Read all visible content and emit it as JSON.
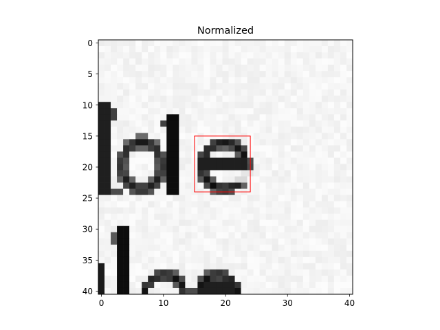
{
  "chart_data": {
    "type": "heatmap",
    "title": "Normalized",
    "xlabel": "",
    "ylabel": "",
    "xlim": [
      -0.5,
      40.5
    ],
    "ylim": [
      40.5,
      -0.5
    ],
    "x_ticks": [
      0,
      10,
      20,
      30,
      40
    ],
    "y_ticks": [
      0,
      5,
      10,
      15,
      20,
      25,
      30,
      35,
      40
    ],
    "x_tick_labels": [
      "0",
      "10",
      "20",
      "30",
      "40"
    ],
    "y_tick_labels": [
      "0",
      "5",
      "10",
      "15",
      "20",
      "25",
      "30",
      "35",
      "40"
    ],
    "colormap": "gray",
    "grid": false,
    "grid_size": [
      41,
      41
    ],
    "content_description": "Grayscale crop of printed text showing the letters 'de' in the upper row and partial letters 'lee' in the lower row",
    "annotations": [
      {
        "type": "rectangle",
        "x_range": [
          15,
          24
        ],
        "y_range": [
          15,
          24
        ],
        "color": "#ff0000"
      }
    ]
  }
}
